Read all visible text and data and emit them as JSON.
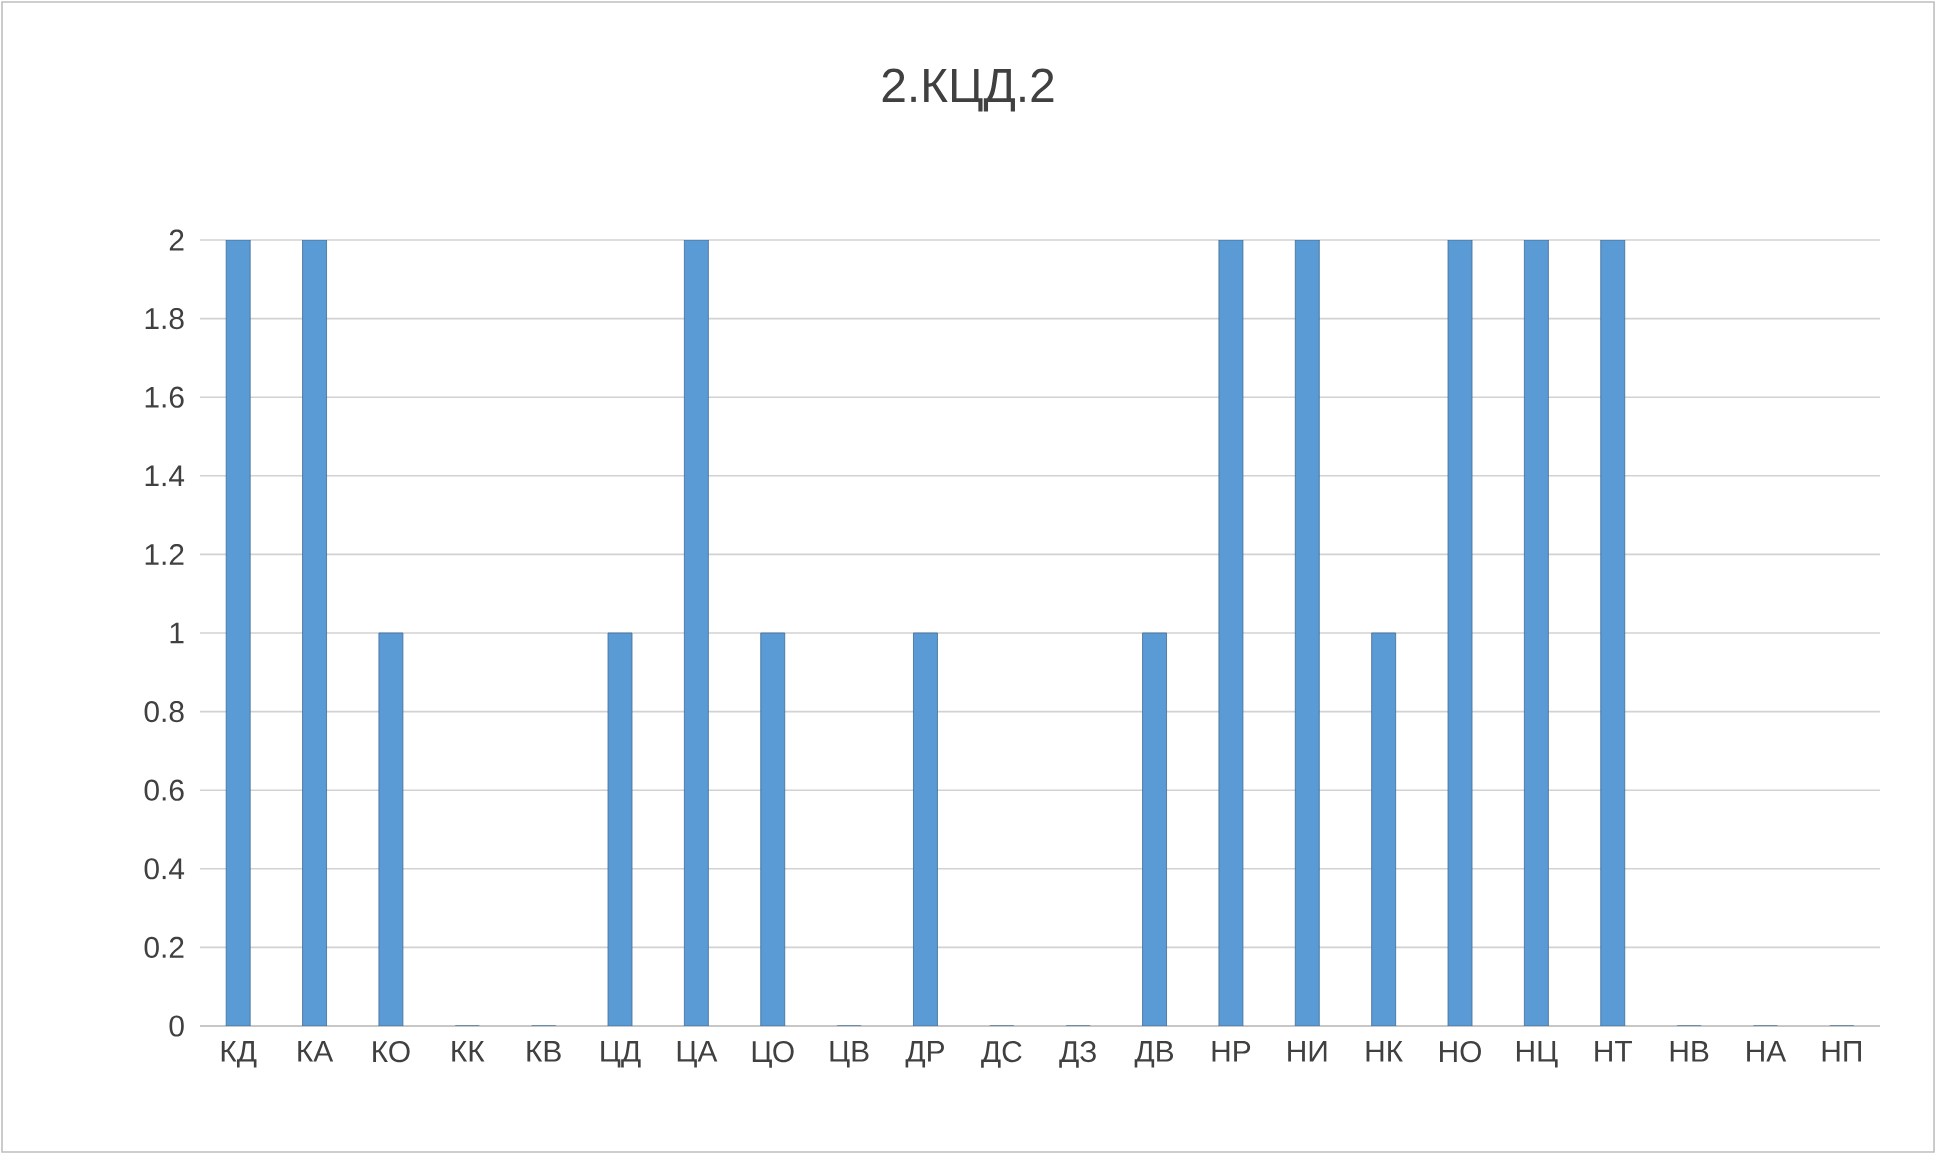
{
  "chart_data": {
    "type": "bar",
    "title": "2.КЦД.2",
    "categories": [
      "КД",
      "КА",
      "КО",
      "КК",
      "КВ",
      "ЦД",
      "ЦА",
      "ЦО",
      "ЦВ",
      "ДР",
      "ДС",
      "ДЗ",
      "ДВ",
      "НР",
      "НИ",
      "НК",
      "НО",
      "НЦ",
      "НТ",
      "НВ",
      "НА",
      "НП"
    ],
    "values": [
      2,
      2,
      1,
      0,
      0,
      1,
      2,
      1,
      0,
      1,
      0,
      0,
      1,
      2,
      2,
      1,
      2,
      2,
      2,
      0,
      0,
      0
    ],
    "color": "#5b9bd5",
    "ylim": [
      0,
      2
    ],
    "yticks": [
      0,
      0.2,
      0.4,
      0.6,
      0.8,
      1,
      1.2,
      1.4,
      1.6,
      1.8,
      2
    ],
    "grid": "y"
  }
}
